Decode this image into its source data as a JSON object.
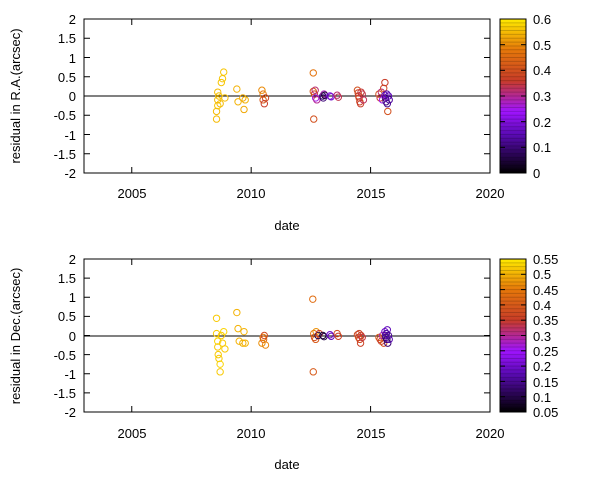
{
  "chart_data": [
    {
      "type": "scatter",
      "xlabel": "date",
      "ylabel": "residual in R.A.(arcsec)",
      "xlim": [
        2003,
        2020
      ],
      "ylim": [
        -2,
        2
      ],
      "xticks": [
        "2005",
        "2010",
        "2015",
        "2020"
      ],
      "yticks": [
        "2",
        "1.5",
        "1",
        "0.5",
        "0",
        "-0.5",
        "-1",
        "-1.5",
        "-2"
      ],
      "zero_line": true,
      "colorbar": {
        "min": 0,
        "max": 0.6,
        "ticks": [
          "0.6",
          "0.5",
          "0.4",
          "0.3",
          "0.2",
          "0.1",
          "0"
        ]
      },
      "points": [
        {
          "x": 2008.55,
          "y": -0.6,
          "c": 0.55
        },
        {
          "x": 2008.55,
          "y": -0.4,
          "c": 0.55
        },
        {
          "x": 2008.6,
          "y": -0.25,
          "c": 0.56
        },
        {
          "x": 2008.6,
          "y": -0.1,
          "c": 0.55
        },
        {
          "x": 2008.65,
          "y": 0.0,
          "c": 0.56
        },
        {
          "x": 2008.6,
          "y": 0.1,
          "c": 0.55
        },
        {
          "x": 2008.7,
          "y": -0.2,
          "c": 0.55
        },
        {
          "x": 2008.75,
          "y": 0.35,
          "c": 0.56
        },
        {
          "x": 2008.8,
          "y": 0.45,
          "c": 0.56
        },
        {
          "x": 2008.85,
          "y": 0.62,
          "c": 0.56
        },
        {
          "x": 2008.9,
          "y": -0.05,
          "c": 0.55
        },
        {
          "x": 2009.4,
          "y": 0.18,
          "c": 0.54
        },
        {
          "x": 2009.45,
          "y": -0.15,
          "c": 0.54
        },
        {
          "x": 2009.65,
          "y": -0.05,
          "c": 0.53
        },
        {
          "x": 2009.7,
          "y": -0.35,
          "c": 0.53
        },
        {
          "x": 2009.75,
          "y": -0.1,
          "c": 0.54
        },
        {
          "x": 2010.45,
          "y": 0.15,
          "c": 0.5
        },
        {
          "x": 2010.5,
          "y": 0.05,
          "c": 0.48
        },
        {
          "x": 2010.5,
          "y": -0.1,
          "c": 0.42
        },
        {
          "x": 2010.55,
          "y": -0.2,
          "c": 0.36
        },
        {
          "x": 2010.6,
          "y": -0.05,
          "c": 0.38
        },
        {
          "x": 2012.6,
          "y": 0.6,
          "c": 0.47
        },
        {
          "x": 2012.6,
          "y": 0.12,
          "c": 0.42
        },
        {
          "x": 2012.62,
          "y": -0.6,
          "c": 0.4
        },
        {
          "x": 2012.65,
          "y": 0.05,
          "c": 0.38
        },
        {
          "x": 2012.7,
          "y": -0.05,
          "c": 0.25
        },
        {
          "x": 2012.68,
          "y": 0.15,
          "c": 0.32
        },
        {
          "x": 2012.75,
          "y": -0.1,
          "c": 0.3
        },
        {
          "x": 2013.0,
          "y": 0.0,
          "c": 0.08
        },
        {
          "x": 2013.05,
          "y": 0.05,
          "c": 0.28
        },
        {
          "x": 2013.02,
          "y": -0.05,
          "c": 0.1
        },
        {
          "x": 2013.08,
          "y": 0.02,
          "c": 0.05
        },
        {
          "x": 2013.3,
          "y": 0.0,
          "c": 0.2
        },
        {
          "x": 2013.35,
          "y": -0.02,
          "c": 0.18
        },
        {
          "x": 2013.6,
          "y": 0.02,
          "c": 0.32
        },
        {
          "x": 2013.65,
          "y": -0.03,
          "c": 0.34
        },
        {
          "x": 2014.45,
          "y": 0.15,
          "c": 0.4
        },
        {
          "x": 2014.48,
          "y": 0.08,
          "c": 0.38
        },
        {
          "x": 2014.5,
          "y": 0.0,
          "c": 0.36
        },
        {
          "x": 2014.52,
          "y": -0.05,
          "c": 0.38
        },
        {
          "x": 2014.55,
          "y": -0.15,
          "c": 0.37
        },
        {
          "x": 2014.58,
          "y": -0.2,
          "c": 0.36
        },
        {
          "x": 2014.6,
          "y": 0.1,
          "c": 0.35
        },
        {
          "x": 2014.65,
          "y": 0.05,
          "c": 0.34
        },
        {
          "x": 2014.7,
          "y": -0.1,
          "c": 0.33
        },
        {
          "x": 2015.35,
          "y": 0.05,
          "c": 0.4
        },
        {
          "x": 2015.4,
          "y": -0.05,
          "c": 0.35
        },
        {
          "x": 2015.45,
          "y": 0.1,
          "c": 0.32
        },
        {
          "x": 2015.5,
          "y": -0.1,
          "c": 0.25
        },
        {
          "x": 2015.55,
          "y": 0.2,
          "c": 0.38
        },
        {
          "x": 2015.6,
          "y": 0.35,
          "c": 0.36
        },
        {
          "x": 2015.6,
          "y": 0.02,
          "c": 0.15
        },
        {
          "x": 2015.62,
          "y": -0.05,
          "c": 0.12
        },
        {
          "x": 2015.65,
          "y": -0.15,
          "c": 0.1
        },
        {
          "x": 2015.68,
          "y": 0.05,
          "c": 0.14
        },
        {
          "x": 2015.7,
          "y": -0.2,
          "c": 0.12
        },
        {
          "x": 2015.72,
          "y": -0.4,
          "c": 0.4
        },
        {
          "x": 2015.75,
          "y": 0.0,
          "c": 0.16
        },
        {
          "x": 2015.78,
          "y": -0.1,
          "c": 0.13
        }
      ]
    },
    {
      "type": "scatter",
      "xlabel": "date",
      "ylabel": "residual in Dec.(arcsec)",
      "xlim": [
        2003,
        2020
      ],
      "ylim": [
        -2,
        2
      ],
      "xticks": [
        "2005",
        "2010",
        "2015",
        "2020"
      ],
      "yticks": [
        "2",
        "1.5",
        "1",
        "0.5",
        "0",
        "-0.5",
        "-1",
        "-1.5",
        "-2"
      ],
      "zero_line": true,
      "colorbar": {
        "min": 0.05,
        "max": 0.55,
        "ticks": [
          "0.55",
          "0.5",
          "0.45",
          "0.4",
          "0.35",
          "0.3",
          "0.25",
          "0.2",
          "0.15",
          "0.1",
          "0.05"
        ]
      },
      "points": [
        {
          "x": 2008.55,
          "y": 0.45,
          "c": 0.52
        },
        {
          "x": 2008.55,
          "y": 0.05,
          "c": 0.52
        },
        {
          "x": 2008.6,
          "y": -0.15,
          "c": 0.53
        },
        {
          "x": 2008.6,
          "y": -0.3,
          "c": 0.52
        },
        {
          "x": 2008.62,
          "y": -0.5,
          "c": 0.52
        },
        {
          "x": 2008.65,
          "y": -0.6,
          "c": 0.52
        },
        {
          "x": 2008.7,
          "y": -0.75,
          "c": 0.53
        },
        {
          "x": 2008.7,
          "y": -0.95,
          "c": 0.52
        },
        {
          "x": 2008.75,
          "y": 0.0,
          "c": 0.52
        },
        {
          "x": 2008.8,
          "y": -0.2,
          "c": 0.52
        },
        {
          "x": 2008.85,
          "y": 0.1,
          "c": 0.53
        },
        {
          "x": 2008.9,
          "y": -0.35,
          "c": 0.52
        },
        {
          "x": 2009.4,
          "y": 0.6,
          "c": 0.5
        },
        {
          "x": 2009.45,
          "y": 0.18,
          "c": 0.5
        },
        {
          "x": 2009.5,
          "y": -0.15,
          "c": 0.5
        },
        {
          "x": 2009.65,
          "y": -0.2,
          "c": 0.5
        },
        {
          "x": 2009.7,
          "y": 0.1,
          "c": 0.5
        },
        {
          "x": 2009.75,
          "y": -0.2,
          "c": 0.5
        },
        {
          "x": 2010.45,
          "y": -0.2,
          "c": 0.47
        },
        {
          "x": 2010.5,
          "y": -0.05,
          "c": 0.45
        },
        {
          "x": 2010.52,
          "y": -0.1,
          "c": 0.42
        },
        {
          "x": 2010.55,
          "y": 0.0,
          "c": 0.38
        },
        {
          "x": 2010.6,
          "y": -0.25,
          "c": 0.46
        },
        {
          "x": 2012.58,
          "y": 0.95,
          "c": 0.43
        },
        {
          "x": 2012.6,
          "y": -0.95,
          "c": 0.4
        },
        {
          "x": 2012.62,
          "y": 0.05,
          "c": 0.45
        },
        {
          "x": 2012.65,
          "y": -0.05,
          "c": 0.38
        },
        {
          "x": 2012.7,
          "y": -0.1,
          "c": 0.4
        },
        {
          "x": 2012.72,
          "y": 0.1,
          "c": 0.47
        },
        {
          "x": 2012.8,
          "y": 0.0,
          "c": 0.1
        },
        {
          "x": 2012.85,
          "y": 0.05,
          "c": 0.35
        },
        {
          "x": 2013.0,
          "y": 0.0,
          "c": 0.08
        },
        {
          "x": 2013.05,
          "y": -0.03,
          "c": 0.1
        },
        {
          "x": 2013.3,
          "y": 0.02,
          "c": 0.2
        },
        {
          "x": 2013.35,
          "y": -0.02,
          "c": 0.18
        },
        {
          "x": 2013.6,
          "y": 0.05,
          "c": 0.38
        },
        {
          "x": 2013.65,
          "y": -0.02,
          "c": 0.36
        },
        {
          "x": 2014.45,
          "y": 0.02,
          "c": 0.37
        },
        {
          "x": 2014.5,
          "y": -0.05,
          "c": 0.38
        },
        {
          "x": 2014.52,
          "y": 0.05,
          "c": 0.36
        },
        {
          "x": 2014.55,
          "y": -0.1,
          "c": 0.37
        },
        {
          "x": 2014.58,
          "y": -0.2,
          "c": 0.36
        },
        {
          "x": 2014.6,
          "y": 0.0,
          "c": 0.35
        },
        {
          "x": 2014.65,
          "y": -0.05,
          "c": 0.34
        },
        {
          "x": 2015.35,
          "y": -0.05,
          "c": 0.4
        },
        {
          "x": 2015.4,
          "y": -0.1,
          "c": 0.38
        },
        {
          "x": 2015.45,
          "y": -0.15,
          "c": 0.35
        },
        {
          "x": 2015.5,
          "y": 0.0,
          "c": 0.3
        },
        {
          "x": 2015.55,
          "y": -0.2,
          "c": 0.38
        },
        {
          "x": 2015.6,
          "y": 0.1,
          "c": 0.2
        },
        {
          "x": 2015.62,
          "y": 0.0,
          "c": 0.15
        },
        {
          "x": 2015.64,
          "y": -0.05,
          "c": 0.14
        },
        {
          "x": 2015.66,
          "y": 0.05,
          "c": 0.16
        },
        {
          "x": 2015.68,
          "y": -0.1,
          "c": 0.12
        },
        {
          "x": 2015.7,
          "y": 0.15,
          "c": 0.18
        },
        {
          "x": 2015.72,
          "y": -0.2,
          "c": 0.13
        },
        {
          "x": 2015.75,
          "y": 0.0,
          "c": 0.15
        },
        {
          "x": 2015.78,
          "y": -0.1,
          "c": 0.17
        }
      ]
    }
  ]
}
